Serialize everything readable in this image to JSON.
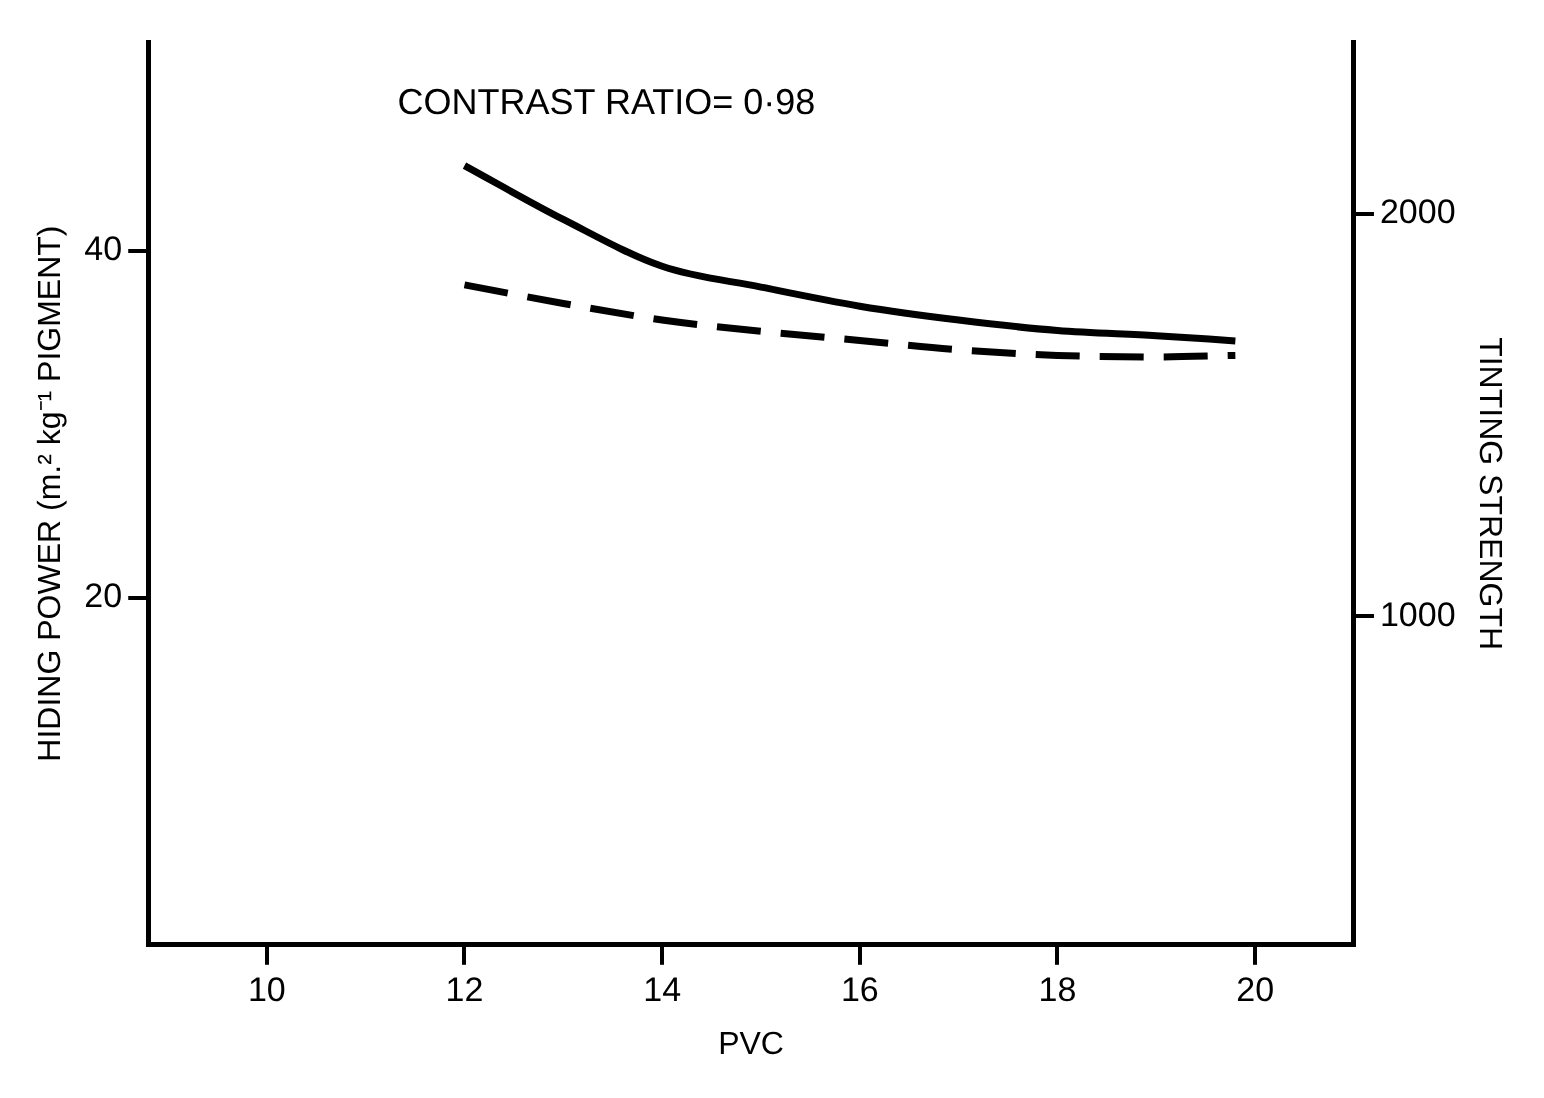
{
  "chart_data": {
    "type": "line",
    "xlabel": "PVC",
    "ylabel": "HIDING POWER (m.² kg⁻¹ PIGMENT)",
    "y2label": "TINTING STRENGTH",
    "annotations": [
      "CONTRAST RATIO= 0·98"
    ],
    "x": [
      12,
      13,
      14,
      15,
      16,
      17,
      18,
      19,
      19.8
    ],
    "series": [
      {
        "color": "#000000",
        "line_style": "solid",
        "values": [
          44.9,
          41.8,
          39.1,
          37.9,
          36.8,
          36.0,
          35.4,
          35.1,
          34.8
        ]
      },
      {
        "color": "#000000",
        "line_style": "dashed",
        "axis": "y2",
        "values": [
          1823,
          1777,
          1736,
          1708,
          1685,
          1662,
          1648,
          1644,
          1648
        ]
      }
    ],
    "xlim": [
      8.8,
      21
    ],
    "xticks": [
      10,
      12,
      14,
      16,
      18,
      20
    ],
    "ylim": [
      0,
      52
    ],
    "yticks": [
      20,
      40
    ],
    "y2lim": [
      185,
      2425
    ],
    "y2ticks": [
      1000,
      2000
    ],
    "grid": false,
    "legend": false,
    "marker": "none"
  }
}
